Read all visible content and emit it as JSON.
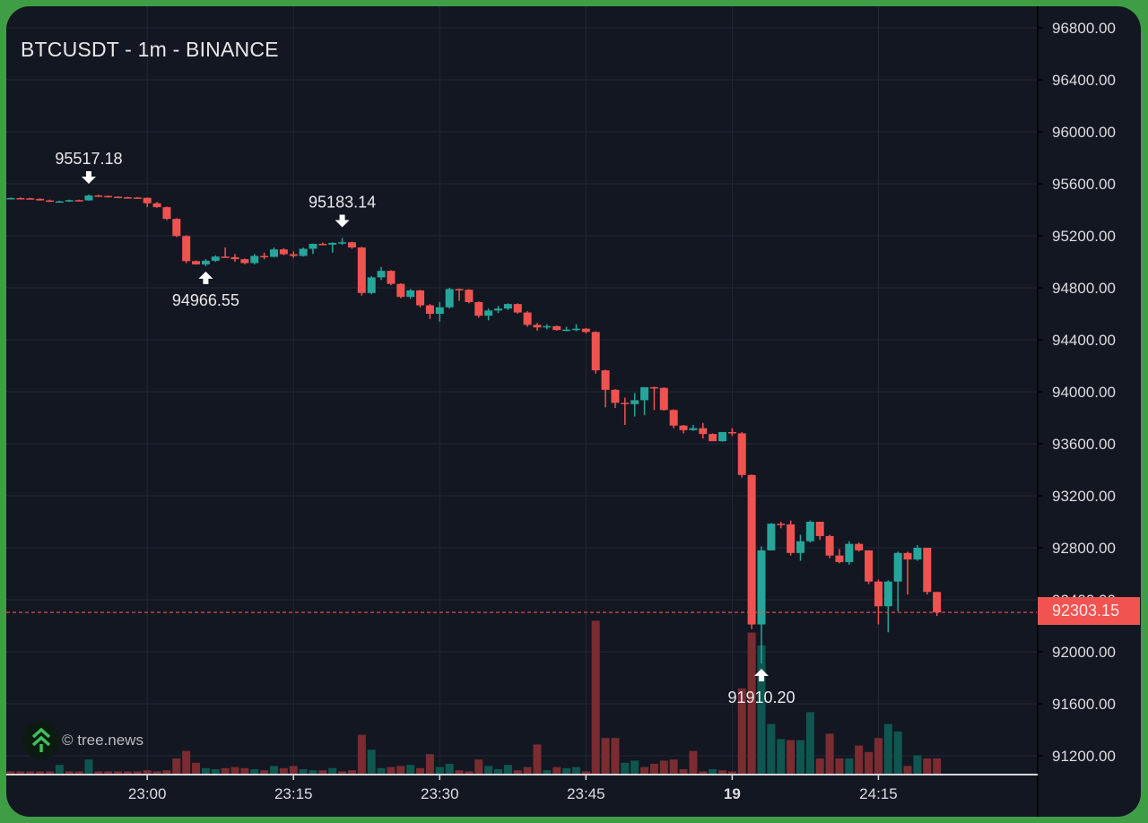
{
  "chart_title": "BTCUSDT - 1m - BINANCE",
  "watermark": {
    "icon": "tree-chevrons-icon",
    "text": "© tree.news"
  },
  "last_price": {
    "value": "92303.15",
    "color": "#f05350"
  },
  "colors": {
    "up": "#26a69a",
    "down": "#ef5350",
    "up_volume": "#0f5650",
    "down_volume": "#7a2c31",
    "background": "#131722",
    "grid": "#232734",
    "frame": "#3f9e45"
  },
  "chart_data": {
    "type": "candlestick",
    "title": "BTCUSDT - 1m - BINANCE",
    "xlabel": "",
    "ylabel": "",
    "ylim": [
      91050,
      96900
    ],
    "grid": true,
    "y_ticks": [
      "96800.00",
      "96400.00",
      "96000.00",
      "95600.00",
      "95200.00",
      "94800.00",
      "94400.00",
      "94000.00",
      "93600.00",
      "93200.00",
      "92800.00",
      "92400.00",
      "92000.00",
      "91600.00",
      "91200.00"
    ],
    "x_ticks": [
      {
        "label": "23:00",
        "index": 14,
        "bold": false
      },
      {
        "label": "23:15",
        "index": 29,
        "bold": false
      },
      {
        "label": "23:30",
        "index": 44,
        "bold": false
      },
      {
        "label": "23:45",
        "index": 59,
        "bold": false
      },
      {
        "label": "19",
        "index": 74,
        "bold": true
      },
      {
        "label": "24:15",
        "index": 89,
        "bold": false
      }
    ],
    "annotations": [
      {
        "label": "95517.18",
        "type": "high",
        "index": 8,
        "price": 95517.18
      },
      {
        "label": "94966.55",
        "type": "low",
        "index": 20,
        "price": 94966.55
      },
      {
        "label": "95183.14",
        "type": "high",
        "index": 34,
        "price": 95183.14
      },
      {
        "label": "91910.20",
        "type": "low",
        "index": 77,
        "price": 91910.2
      }
    ],
    "last_price": 92303.15,
    "candles": [
      [
        95490,
        95495,
        95485,
        95490
      ],
      [
        95490,
        95495,
        95485,
        95488
      ],
      [
        95488,
        95492,
        95480,
        95484
      ],
      [
        95484,
        95488,
        95470,
        95472
      ],
      [
        95472,
        95478,
        95460,
        95462
      ],
      [
        95462,
        95470,
        95455,
        95465
      ],
      [
        95465,
        95478,
        95460,
        95474
      ],
      [
        95474,
        95478,
        95470,
        95472
      ],
      [
        95472,
        95517,
        95470,
        95510
      ],
      [
        95510,
        95517,
        95500,
        95506
      ],
      [
        95506,
        95510,
        95495,
        95500
      ],
      [
        95500,
        95504,
        95492,
        95496
      ],
      [
        95496,
        95500,
        95490,
        95494
      ],
      [
        95494,
        95498,
        95488,
        95492
      ],
      [
        95492,
        95495,
        95420,
        95450
      ],
      [
        95450,
        95460,
        95415,
        95420
      ],
      [
        95420,
        95425,
        95320,
        95330
      ],
      [
        95330,
        95335,
        95190,
        95198
      ],
      [
        95198,
        95205,
        94990,
        95005
      ],
      [
        95005,
        95010,
        94978,
        94980
      ],
      [
        94980,
        95020,
        94966,
        95008
      ],
      [
        95008,
        95050,
        95000,
        95040
      ],
      [
        95040,
        95110,
        95030,
        95035
      ],
      [
        95035,
        95060,
        95000,
        95020
      ],
      [
        95020,
        95025,
        94980,
        94990
      ],
      [
        94990,
        95060,
        94980,
        95045
      ],
      [
        95045,
        95070,
        95020,
        95038
      ],
      [
        95038,
        95110,
        95035,
        95095
      ],
      [
        95095,
        95105,
        95050,
        95058
      ],
      [
        95058,
        95080,
        95030,
        95045
      ],
      [
        95045,
        95110,
        95040,
        95100
      ],
      [
        95100,
        95140,
        95060,
        95138
      ],
      [
        95138,
        95148,
        95128,
        95132
      ],
      [
        95132,
        95150,
        95070,
        95145
      ],
      [
        95145,
        95183,
        95130,
        95150
      ],
      [
        95150,
        95155,
        95100,
        95110
      ],
      [
        95110,
        95115,
        94740,
        94760
      ],
      [
        94760,
        94890,
        94750,
        94880
      ],
      [
        94880,
        94960,
        94860,
        94930
      ],
      [
        94930,
        94935,
        94820,
        94830
      ],
      [
        94830,
        94835,
        94720,
        94730
      ],
      [
        94730,
        94790,
        94715,
        94780
      ],
      [
        94780,
        94785,
        94650,
        94665
      ],
      [
        94665,
        94675,
        94560,
        94600
      ],
      [
        94600,
        94690,
        94540,
        94650
      ],
      [
        94650,
        94800,
        94640,
        94790
      ],
      [
        94790,
        94795,
        94700,
        94785
      ],
      [
        94785,
        94790,
        94680,
        94690
      ],
      [
        94690,
        94695,
        94570,
        94585
      ],
      [
        94585,
        94640,
        94550,
        94625
      ],
      [
        94625,
        94660,
        94605,
        94640
      ],
      [
        94640,
        94680,
        94630,
        94675
      ],
      [
        94675,
        94680,
        94600,
        94610
      ],
      [
        94610,
        94620,
        94500,
        94515
      ],
      [
        94515,
        94530,
        94470,
        94495
      ],
      [
        94495,
        94520,
        94480,
        94505
      ],
      [
        94505,
        94510,
        94470,
        94475
      ],
      [
        94475,
        94500,
        94465,
        94478
      ],
      [
        94478,
        94520,
        94465,
        94485
      ],
      [
        94485,
        94490,
        94450,
        94460
      ],
      [
        94460,
        94465,
        94140,
        94165
      ],
      [
        94165,
        94170,
        93880,
        94015
      ],
      [
        94015,
        94020,
        93875,
        93915
      ],
      [
        93915,
        93955,
        93745,
        93905
      ],
      [
        93905,
        93990,
        93810,
        93935
      ],
      [
        93935,
        94035,
        93820,
        94035
      ],
      [
        94035,
        94040,
        93860,
        94030
      ],
      [
        94030,
        94035,
        93855,
        93860
      ],
      [
        93860,
        93865,
        93720,
        93740
      ],
      [
        93740,
        93745,
        93680,
        93705
      ],
      [
        93705,
        93745,
        93700,
        93720
      ],
      [
        93720,
        93760,
        93640,
        93675
      ],
      [
        93675,
        93680,
        93620,
        93620
      ],
      [
        93620,
        93690,
        93615,
        93690
      ],
      [
        93690,
        93720,
        93660,
        93680
      ],
      [
        93680,
        93690,
        93340,
        93360
      ],
      [
        93360,
        93365,
        92175,
        92210
      ],
      [
        92210,
        92810,
        91910,
        92780
      ],
      [
        92780,
        92990,
        92780,
        92985
      ],
      [
        92985,
        93000,
        92950,
        92980
      ],
      [
        92980,
        93010,
        92740,
        92760
      ],
      [
        92760,
        92900,
        92700,
        92850
      ],
      [
        92850,
        93010,
        92840,
        93000
      ],
      [
        93000,
        92995,
        92860,
        92890
      ],
      [
        92890,
        92900,
        92720,
        92740
      ],
      [
        92740,
        92790,
        92680,
        92690
      ],
      [
        92690,
        92850,
        92670,
        92830
      ],
      [
        92830,
        92840,
        92770,
        92780
      ],
      [
        92780,
        92780,
        92520,
        92540
      ],
      [
        92540,
        92555,
        92210,
        92350
      ],
      [
        92350,
        92550,
        92150,
        92540
      ],
      [
        92540,
        92770,
        92310,
        92760
      ],
      [
        92760,
        92770,
        92440,
        92710
      ],
      [
        92710,
        92820,
        92700,
        92800
      ],
      [
        92800,
        92800,
        92440,
        92460
      ],
      [
        92460,
        92460,
        92275,
        92303
      ]
    ],
    "volume": [
      [
        6,
        "d"
      ],
      [
        6,
        "d"
      ],
      [
        6,
        "d"
      ],
      [
        6,
        "d"
      ],
      [
        6,
        "d"
      ],
      [
        18,
        "u"
      ],
      [
        6,
        "d"
      ],
      [
        6,
        "d"
      ],
      [
        28,
        "u"
      ],
      [
        6,
        "d"
      ],
      [
        6,
        "d"
      ],
      [
        6,
        "d"
      ],
      [
        6,
        "d"
      ],
      [
        6,
        "d"
      ],
      [
        8,
        "d"
      ],
      [
        6,
        "d"
      ],
      [
        8,
        "d"
      ],
      [
        30,
        "d"
      ],
      [
        44,
        "d"
      ],
      [
        22,
        "d"
      ],
      [
        12,
        "u"
      ],
      [
        10,
        "u"
      ],
      [
        12,
        "d"
      ],
      [
        14,
        "d"
      ],
      [
        12,
        "d"
      ],
      [
        10,
        "u"
      ],
      [
        8,
        "d"
      ],
      [
        16,
        "u"
      ],
      [
        12,
        "d"
      ],
      [
        16,
        "d"
      ],
      [
        10,
        "u"
      ],
      [
        8,
        "u"
      ],
      [
        8,
        "d"
      ],
      [
        12,
        "u"
      ],
      [
        6,
        "d"
      ],
      [
        8,
        "d"
      ],
      [
        74,
        "d"
      ],
      [
        46,
        "u"
      ],
      [
        12,
        "u"
      ],
      [
        14,
        "d"
      ],
      [
        16,
        "d"
      ],
      [
        18,
        "u"
      ],
      [
        12,
        "d"
      ],
      [
        38,
        "d"
      ],
      [
        14,
        "u"
      ],
      [
        20,
        "u"
      ],
      [
        8,
        "d"
      ],
      [
        6,
        "d"
      ],
      [
        28,
        "d"
      ],
      [
        16,
        "u"
      ],
      [
        10,
        "u"
      ],
      [
        18,
        "u"
      ],
      [
        8,
        "d"
      ],
      [
        14,
        "d"
      ],
      [
        56,
        "d"
      ],
      [
        8,
        "u"
      ],
      [
        14,
        "d"
      ],
      [
        12,
        "u"
      ],
      [
        14,
        "u"
      ],
      [
        6,
        "d"
      ],
      [
        286,
        "d"
      ],
      [
        68,
        "d"
      ],
      [
        68,
        "d"
      ],
      [
        22,
        "u"
      ],
      [
        26,
        "u"
      ],
      [
        14,
        "d"
      ],
      [
        20,
        "d"
      ],
      [
        26,
        "d"
      ],
      [
        28,
        "d"
      ],
      [
        10,
        "d"
      ],
      [
        44,
        "d"
      ],
      [
        6,
        "d"
      ],
      [
        10,
        "u"
      ],
      [
        8,
        "d"
      ],
      [
        6,
        "d"
      ],
      [
        160,
        "d"
      ],
      [
        264,
        "d"
      ],
      [
        240,
        "u"
      ],
      [
        94,
        "u"
      ],
      [
        66,
        "u"
      ],
      [
        64,
        "d"
      ],
      [
        64,
        "u"
      ],
      [
        116,
        "u"
      ],
      [
        30,
        "d"
      ],
      [
        76,
        "d"
      ],
      [
        30,
        "d"
      ],
      [
        30,
        "u"
      ],
      [
        54,
        "d"
      ],
      [
        42,
        "d"
      ],
      [
        68,
        "d"
      ],
      [
        94,
        "u"
      ],
      [
        80,
        "u"
      ],
      [
        16,
        "d"
      ],
      [
        36,
        "u"
      ],
      [
        30,
        "d"
      ],
      [
        30,
        "d"
      ]
    ]
  }
}
